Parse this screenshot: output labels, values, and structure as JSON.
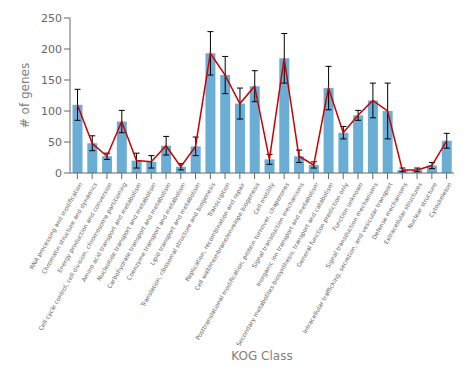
{
  "chart_data": {
    "type": "bar",
    "xlabel": "KOG Class",
    "ylabel": "# of genes",
    "categories": [
      "RNA processing and modification",
      "Chromatin structure and dynamics",
      "Energy production and conversion",
      "Cell cycle control, cell division, chromosome partitioning",
      "Amino acid transport and metabolism",
      "Nucleotide transport and metabolism",
      "Carbohydrate transport and metabolism",
      "Coenzyme transport and metabolism",
      "Lipid transport and metabolism",
      "Translation, ribosomal structure and biogenesis",
      "Transcription",
      "Replication, recombination and repair",
      "Cell wall/membrane/envelope biogenesis",
      "Cell motility",
      "Posttranslational modification, protein turnover, chaperones",
      "Signal transduction mechanisms",
      "Inorganic ion transport and metabolism",
      "Secondary metabolites biosynthesis, transport and catabolism",
      "General function prediction only",
      "Function unknown",
      "Signal transduction mechanisms",
      "Intracellular trafficking, secretion, and vesicular transport",
      "Defense mechanisms",
      "Extracellular structures",
      "Nuclear structure",
      "Cytoskeleton"
    ],
    "series": [
      {
        "type": "bar",
        "color": "#6aaed6",
        "values": [
          110,
          48,
          27,
          83,
          20,
          18,
          44,
          10,
          43,
          193,
          158,
          112,
          140,
          22,
          185,
          27,
          13,
          137,
          65,
          93,
          117,
          100,
          5,
          5,
          12,
          52
        ],
        "error_upper": [
          25,
          12,
          5,
          18,
          12,
          10,
          15,
          5,
          15,
          35,
          30,
          25,
          25,
          8,
          40,
          10,
          5,
          35,
          10,
          8,
          28,
          45,
          3,
          3,
          5,
          12
        ],
        "error_lower": [
          25,
          12,
          5,
          18,
          12,
          10,
          15,
          5,
          15,
          35,
          30,
          25,
          25,
          8,
          40,
          10,
          5,
          35,
          10,
          8,
          28,
          45,
          3,
          3,
          5,
          12
        ]
      },
      {
        "type": "line",
        "color": "#cc0000",
        "values": [
          110,
          48,
          27,
          83,
          20,
          18,
          44,
          10,
          43,
          193,
          158,
          112,
          140,
          22,
          185,
          27,
          13,
          137,
          65,
          93,
          117,
          100,
          5,
          5,
          12,
          52
        ]
      }
    ],
    "ylim": [
      0,
      250
    ],
    "yticks": [
      0,
      50,
      100,
      150,
      200,
      250
    ],
    "grid": false
  }
}
